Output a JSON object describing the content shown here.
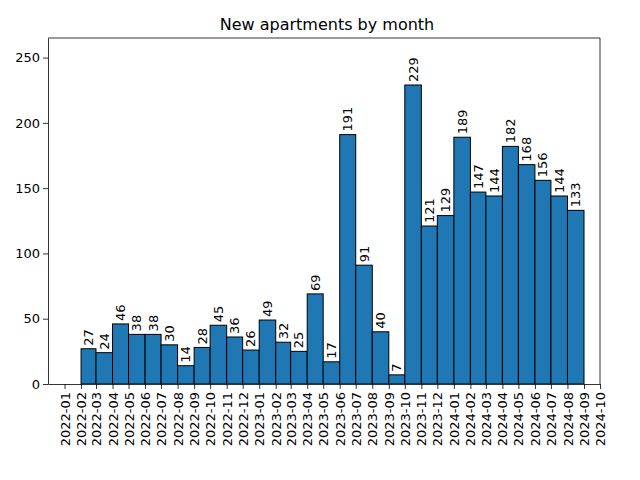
{
  "chart_data": {
    "type": "histogram",
    "title": "New apartments by month",
    "bins": [
      "2022-02",
      "2022-03",
      "2022-04",
      "2022-05",
      "2022-06",
      "2022-07",
      "2022-08",
      "2022-09",
      "2022-10",
      "2022-11",
      "2022-12",
      "2023-01",
      "2023-02",
      "2023-03",
      "2023-04",
      "2023-05",
      "2023-06",
      "2023-07",
      "2023-08",
      "2023-09",
      "2023-10",
      "2023-11",
      "2023-12",
      "2024-01",
      "2024-02",
      "2024-03",
      "2024-04",
      "2024-05",
      "2024-06",
      "2024-07",
      "2024-08",
      "2024-09"
    ],
    "values": [
      27,
      24,
      46,
      38,
      38,
      30,
      14,
      28,
      45,
      36,
      26,
      49,
      32,
      25,
      69,
      17,
      191,
      91,
      40,
      7,
      229,
      121,
      129,
      189,
      147,
      144,
      182,
      168,
      156,
      144,
      133
    ],
    "color": "#1f77b4",
    "xlim": [
      "2021-12",
      "2024-10"
    ],
    "xticks": [
      "2022-01",
      "2022-02",
      "2022-03",
      "2022-04",
      "2022-05",
      "2022-06",
      "2022-07",
      "2022-08",
      "2022-09",
      "2022-10",
      "2022-11",
      "2022-12",
      "2023-01",
      "2023-02",
      "2023-03",
      "2023-04",
      "2023-05",
      "2023-06",
      "2023-07",
      "2023-08",
      "2023-09",
      "2023-10",
      "2023-11",
      "2023-12",
      "2024-01",
      "2024-02",
      "2024-03",
      "2024-04",
      "2024-05",
      "2024-06",
      "2024-07",
      "2024-08",
      "2024-09",
      "2024-10"
    ],
    "ylim": [
      0,
      265
    ],
    "yticks": [
      0,
      50,
      100,
      150,
      200,
      250
    ],
    "grid": false,
    "data_labels": true
  }
}
